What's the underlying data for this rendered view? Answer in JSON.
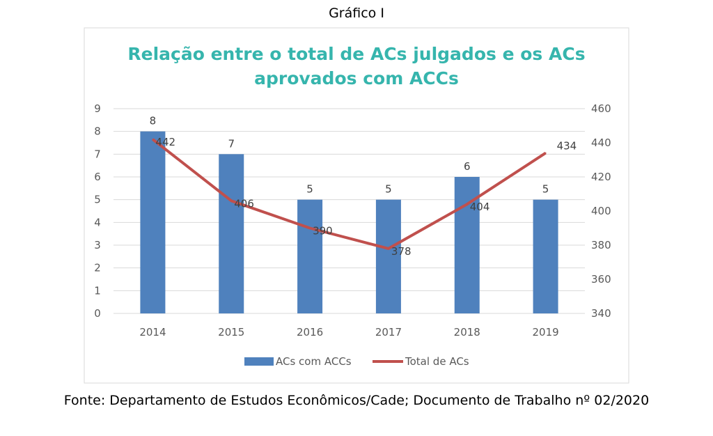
{
  "caption_top": "Gráfico I",
  "caption_bottom": "Fonte: Departamento de Estudos Econômicos/Cade; Documento de Trabalho nº 02/2020",
  "chart_data": {
    "type": "bar+line",
    "title_lines": [
      "Relação entre o total de ACs julgados e os ACs",
      "aprovados com ACCs"
    ],
    "categories": [
      "2014",
      "2015",
      "2016",
      "2017",
      "2018",
      "2019"
    ],
    "series": [
      {
        "name": "ACs com ACCs",
        "type": "bar",
        "axis": "left",
        "color": "#4f81bd",
        "values": [
          8,
          7,
          5,
          5,
          6,
          5
        ]
      },
      {
        "name": "Total de ACs",
        "type": "line",
        "axis": "right",
        "color": "#c0504d",
        "values": [
          442,
          406,
          390,
          378,
          404,
          434
        ]
      }
    ],
    "y_left": {
      "range": [
        0,
        9
      ],
      "ticks": [
        "0",
        "1",
        "2",
        "3",
        "4",
        "5",
        "6",
        "7",
        "8",
        "9"
      ]
    },
    "y_right": {
      "range": [
        340,
        460
      ],
      "ticks": [
        "340",
        "360",
        "380",
        "400",
        "420",
        "440",
        "460"
      ]
    },
    "grid": true,
    "legend_position": "bottom"
  }
}
